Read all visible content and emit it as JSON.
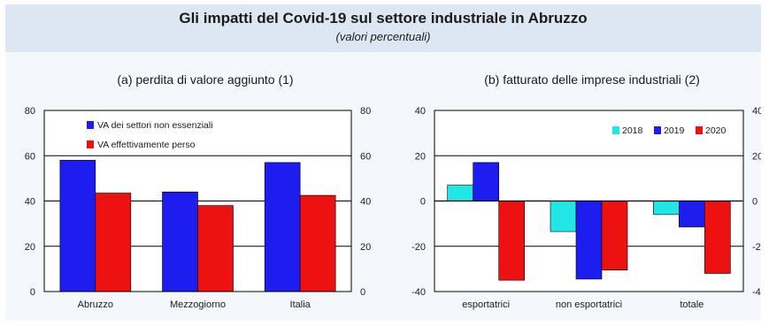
{
  "title": "Gli impatti del Covid-19 sul settore industriale in Abruzzo",
  "subtitle": "(valori percentuali)",
  "colors": {
    "blue": "#1d1df0",
    "red": "#ee1111",
    "cyan": "#22e5e5",
    "header_bg": "#dde6f3"
  },
  "chart_data": [
    {
      "type": "bar",
      "title": "(a) perdita di valore aggiunto (1)",
      "categories": [
        "Abruzzo",
        "Mezzogiorno",
        "Italia"
      ],
      "series": [
        {
          "name": "VA dei settori non essenziali",
          "values": [
            58,
            44,
            57
          ],
          "color": "#1d1df0"
        },
        {
          "name": "VA effettivamente perso",
          "values": [
            43.5,
            38,
            42.5
          ],
          "color": "#ee1111"
        }
      ],
      "ylim": [
        0,
        80
      ],
      "yticks": [
        "0",
        "20",
        "40",
        "60",
        "80"
      ],
      "grid": true,
      "legend": "top-left"
    },
    {
      "type": "bar",
      "title": "(b) fatturato delle imprese industriali (2)",
      "categories": [
        "esportatrici",
        "non esportatrici",
        "totale"
      ],
      "series": [
        {
          "name": "2018",
          "values": [
            7,
            -13.5,
            -6
          ],
          "color": "#22e5e5"
        },
        {
          "name": "2019",
          "values": [
            17,
            -34.5,
            -11.5
          ],
          "color": "#1d1df0"
        },
        {
          "name": "2020",
          "values": [
            -35,
            -30.5,
            -32
          ],
          "color": "#ee1111"
        }
      ],
      "ylim": [
        -40,
        40
      ],
      "yticks": [
        "-40",
        "-20",
        "0",
        "20",
        "40"
      ],
      "grid": true,
      "legend": "top-right"
    }
  ]
}
